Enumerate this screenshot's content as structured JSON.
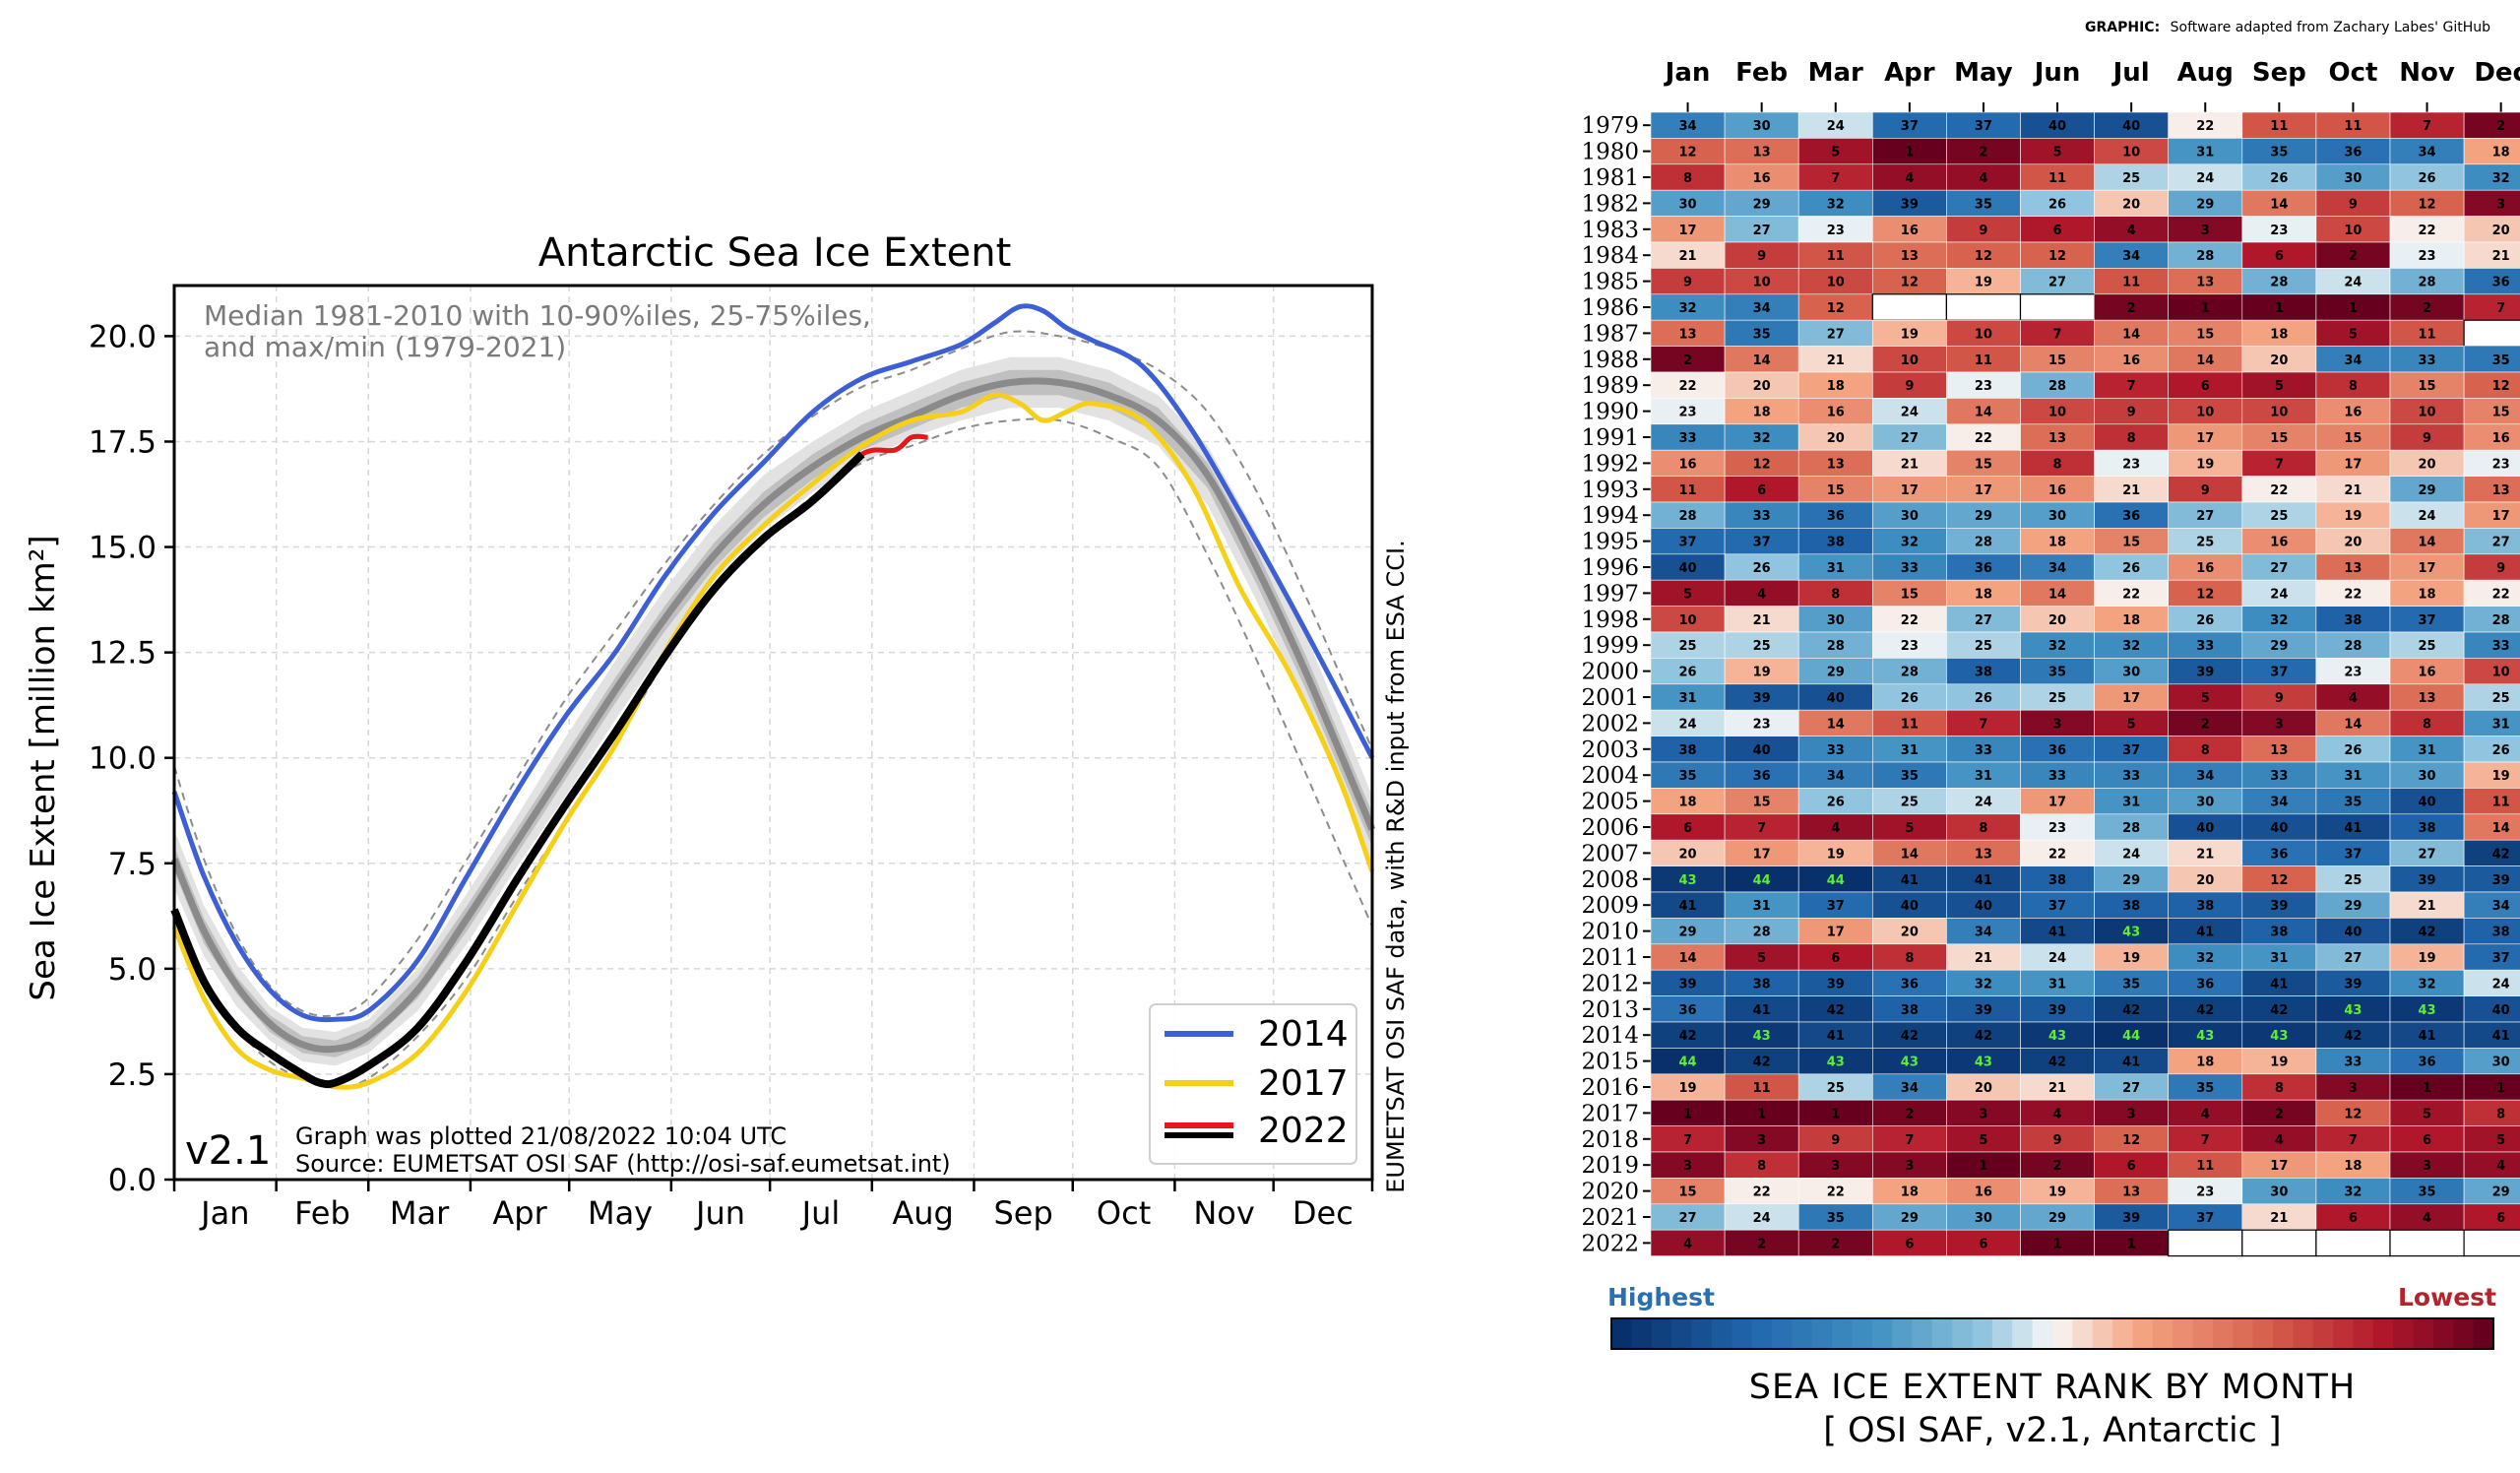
{
  "line_chart": {
    "title": "Antarctic Sea Ice Extent",
    "ylabel": "Sea Ice Extent [million km²]",
    "note_line1": "Median 1981-2010 with 10-90%iles, 25-75%iles,",
    "note_line2": "and max/min (1979-2021)",
    "version": "v2.1",
    "footer_line1": "Graph was plotted 21/08/2022 10:04 UTC",
    "footer_line2": "Source: EUMETSAT OSI SAF (http://osi-saf.eumetsat.int)",
    "side_note": "EUMETSAT OSI SAF data, with R&D input from ESA CCI.",
    "legend_position": "lower-right",
    "colors": {
      "y2014": "#3d5fd6",
      "y2017": "#f6cf18",
      "y2022_red": "#e8161b",
      "y2022_black": "#000000",
      "median": "#8a8a8a",
      "band_outer": "#e4e4e4",
      "band_inner": "#c2c2c2",
      "minmax": "#8c8c8c"
    }
  },
  "heatmap": {
    "graphic_prefix": "GRAPHIC:",
    "graphic_credit": "Software adapted from Zachary Labes' GitHub",
    "highest_label": "Highest",
    "lowest_label": "Lowest",
    "title_line1": "SEA ICE EXTENT RANK BY MONTH",
    "title_line2": "[ OSI SAF, v2.1, Antarctic ]",
    "colors": {
      "highest": "#2a6fb0",
      "lowest": "#b5242c"
    }
  },
  "chart_data": [
    {
      "type": "line",
      "title": "Antarctic Sea Ice Extent",
      "ylabel": "Sea Ice Extent [million km²]",
      "xlabel": "",
      "ylim": [
        0,
        21.2
      ],
      "yticks": [
        0.0,
        2.5,
        5.0,
        7.5,
        10.0,
        12.5,
        15.0,
        17.5,
        20.0
      ],
      "ytick_labels": [
        "0.0",
        "2.5",
        "5.0",
        "7.5",
        "10.0",
        "12.5",
        "15.0",
        "17.5",
        "20.0"
      ],
      "xticks": [
        "Jan",
        "Feb",
        "Mar",
        "Apr",
        "May",
        "Jun",
        "Jul",
        "Aug",
        "Sep",
        "Oct",
        "Nov",
        "Dec"
      ],
      "xlim_day": [
        1,
        365
      ],
      "grid": true,
      "series": [
        {
          "name": "2014",
          "color": "#3d5fd6",
          "x": [
            1,
            10,
            20,
            30,
            40,
            50,
            60,
            75,
            90,
            105,
            120,
            135,
            150,
            165,
            180,
            195,
            210,
            225,
            240,
            250,
            258,
            265,
            272,
            280,
            295,
            310,
            325,
            340,
            355,
            365
          ],
          "y": [
            9.2,
            7.2,
            5.6,
            4.5,
            3.9,
            3.8,
            4.0,
            5.2,
            7.2,
            9.2,
            11.0,
            12.5,
            14.3,
            15.8,
            17.0,
            18.2,
            19.0,
            19.4,
            19.8,
            20.3,
            20.7,
            20.6,
            20.2,
            19.9,
            19.3,
            17.8,
            15.8,
            13.7,
            11.5,
            10.0
          ]
        },
        {
          "name": "2017",
          "color": "#f6cf18",
          "x": [
            1,
            10,
            20,
            30,
            40,
            50,
            60,
            75,
            90,
            105,
            120,
            135,
            150,
            165,
            180,
            195,
            210,
            225,
            240,
            250,
            258,
            265,
            272,
            280,
            295,
            310,
            325,
            340,
            355,
            365
          ],
          "y": [
            6.0,
            4.3,
            3.1,
            2.6,
            2.4,
            2.2,
            2.3,
            3.0,
            4.5,
            6.5,
            8.5,
            10.3,
            12.5,
            14.3,
            15.5,
            16.5,
            17.4,
            18.0,
            18.2,
            18.6,
            18.4,
            18.0,
            18.2,
            18.4,
            18.0,
            16.5,
            14.0,
            12.0,
            9.5,
            7.3
          ]
        },
        {
          "name": "2022",
          "color": "#e8161b",
          "x": [
            1,
            10,
            20,
            30,
            40,
            45,
            50,
            60,
            75,
            90,
            105,
            120,
            135,
            150,
            165,
            180,
            195,
            210,
            220,
            225,
            230
          ],
          "y": [
            6.4,
            4.7,
            3.6,
            3.0,
            2.5,
            2.3,
            2.3,
            2.7,
            3.6,
            5.2,
            7.1,
            8.9,
            10.6,
            12.4,
            14.0,
            15.2,
            16.1,
            17.2,
            17.3,
            17.6,
            17.6
          ],
          "observed_through_day": 210,
          "observed_color": "#000000"
        },
        {
          "name": "median 1981-2010",
          "color": "#8a8a8a",
          "x": [
            1,
            10,
            20,
            30,
            40,
            50,
            60,
            75,
            90,
            105,
            120,
            135,
            150,
            165,
            180,
            195,
            210,
            225,
            240,
            255,
            270,
            285,
            300,
            315,
            330,
            345,
            365
          ],
          "y": [
            7.6,
            5.9,
            4.6,
            3.7,
            3.2,
            3.1,
            3.4,
            4.5,
            6.2,
            8.0,
            9.8,
            11.6,
            13.3,
            14.8,
            16.0,
            16.9,
            17.6,
            18.1,
            18.6,
            18.9,
            18.9,
            18.6,
            18.0,
            16.7,
            14.5,
            12.0,
            8.3
          ]
        }
      ],
      "bands": {
        "x": [
          1,
          10,
          20,
          30,
          40,
          50,
          60,
          75,
          90,
          105,
          120,
          135,
          150,
          165,
          180,
          195,
          210,
          225,
          240,
          255,
          270,
          285,
          300,
          315,
          330,
          345,
          365
        ],
        "p10": [
          6.9,
          5.3,
          4.1,
          3.3,
          2.8,
          2.7,
          3.0,
          4.0,
          5.6,
          7.4,
          9.1,
          10.9,
          12.6,
          14.2,
          15.4,
          16.3,
          17.0,
          17.6,
          18.0,
          18.3,
          18.3,
          18.0,
          17.4,
          16.0,
          13.7,
          11.2,
          7.5
        ],
        "p25": [
          7.3,
          5.6,
          4.4,
          3.5,
          3.0,
          2.9,
          3.2,
          4.3,
          5.9,
          7.7,
          9.5,
          11.3,
          13.0,
          14.5,
          15.7,
          16.6,
          17.3,
          17.8,
          18.3,
          18.6,
          18.6,
          18.3,
          17.7,
          16.4,
          14.1,
          11.6,
          7.9
        ],
        "p75": [
          7.9,
          6.2,
          4.8,
          3.9,
          3.4,
          3.3,
          3.6,
          4.8,
          6.5,
          8.3,
          10.1,
          11.9,
          13.6,
          15.1,
          16.3,
          17.2,
          17.9,
          18.4,
          18.9,
          19.2,
          19.2,
          18.9,
          18.3,
          17.0,
          14.9,
          12.4,
          8.7
        ],
        "p90": [
          8.3,
          6.5,
          5.1,
          4.1,
          3.6,
          3.5,
          3.8,
          5.0,
          6.8,
          8.6,
          10.5,
          12.3,
          14.0,
          15.5,
          16.7,
          17.5,
          18.2,
          18.7,
          19.2,
          19.5,
          19.5,
          19.2,
          18.6,
          17.4,
          15.3,
          12.9,
          9.1
        ],
        "min": [
          6.0,
          4.7,
          3.6,
          2.8,
          2.4,
          2.2,
          2.4,
          3.4,
          4.8,
          6.7,
          8.5,
          10.3,
          12.3,
          14.0,
          15.2,
          16.2,
          17.0,
          17.4,
          17.8,
          18.0,
          18.0,
          17.6,
          16.9,
          14.8,
          12.3,
          9.6,
          6.0
        ],
        "max": [
          9.8,
          7.6,
          5.8,
          4.6,
          4.0,
          3.9,
          4.3,
          5.7,
          7.6,
          9.5,
          11.4,
          13.0,
          14.6,
          16.0,
          17.2,
          18.1,
          18.8,
          19.2,
          19.7,
          20.1,
          20.0,
          19.7,
          19.2,
          18.2,
          16.3,
          13.8,
          10.2
        ]
      }
    },
    {
      "type": "heatmap",
      "title": "SEA ICE EXTENT RANK BY MONTH",
      "subtitle": "[ OSI SAF, v2.1, Antarctic ]",
      "columns": [
        "Jan",
        "Feb",
        "Mar",
        "Apr",
        "May",
        "Jun",
        "Jul",
        "Aug",
        "Sep",
        "Oct",
        "Nov",
        "Dec"
      ],
      "rows": [
        "1979",
        "1980",
        "1981",
        "1982",
        "1983",
        "1984",
        "1985",
        "1986",
        "1987",
        "1988",
        "1989",
        "1990",
        "1991",
        "1992",
        "1993",
        "1994",
        "1995",
        "1996",
        "1997",
        "1998",
        "1999",
        "2000",
        "2001",
        "2002",
        "2003",
        "2004",
        "2005",
        "2006",
        "2007",
        "2008",
        "2009",
        "2010",
        "2011",
        "2012",
        "2013",
        "2014",
        "2015",
        "2016",
        "2017",
        "2018",
        "2019",
        "2020",
        "2021",
        "2022"
      ],
      "values": [
        [
          34,
          30,
          24,
          37,
          37,
          40,
          40,
          22,
          11,
          11,
          7,
          2
        ],
        [
          12,
          13,
          5,
          1,
          2,
          5,
          10,
          31,
          35,
          36,
          34,
          18
        ],
        [
          8,
          16,
          7,
          4,
          4,
          11,
          25,
          24,
          26,
          30,
          26,
          32
        ],
        [
          30,
          29,
          32,
          39,
          35,
          26,
          20,
          29,
          14,
          9,
          12,
          3
        ],
        [
          17,
          27,
          23,
          16,
          9,
          6,
          4,
          3,
          23,
          10,
          22,
          20
        ],
        [
          21,
          9,
          11,
          13,
          12,
          12,
          34,
          28,
          6,
          2,
          23,
          21
        ],
        [
          9,
          10,
          10,
          12,
          19,
          27,
          11,
          13,
          28,
          24,
          28,
          36
        ],
        [
          32,
          34,
          12,
          null,
          null,
          null,
          2,
          1,
          1,
          1,
          2,
          7
        ],
        [
          13,
          35,
          27,
          19,
          10,
          7,
          14,
          15,
          18,
          5,
          11,
          null
        ],
        [
          2,
          14,
          21,
          10,
          11,
          15,
          16,
          14,
          20,
          34,
          33,
          35
        ],
        [
          22,
          20,
          18,
          9,
          23,
          28,
          7,
          6,
          5,
          8,
          15,
          12
        ],
        [
          23,
          18,
          16,
          24,
          14,
          10,
          9,
          10,
          10,
          16,
          10,
          15
        ],
        [
          33,
          32,
          20,
          27,
          22,
          13,
          8,
          17,
          15,
          15,
          9,
          16
        ],
        [
          16,
          12,
          13,
          21,
          15,
          8,
          23,
          19,
          7,
          17,
          20,
          23
        ],
        [
          11,
          6,
          15,
          17,
          17,
          16,
          21,
          9,
          22,
          21,
          29,
          13
        ],
        [
          28,
          33,
          36,
          30,
          29,
          30,
          36,
          27,
          25,
          19,
          24,
          17
        ],
        [
          37,
          37,
          38,
          32,
          28,
          18,
          15,
          25,
          16,
          20,
          14,
          27
        ],
        [
          40,
          26,
          31,
          33,
          36,
          34,
          26,
          16,
          27,
          13,
          17,
          9
        ],
        [
          5,
          4,
          8,
          15,
          18,
          14,
          22,
          12,
          24,
          22,
          18,
          22
        ],
        [
          10,
          21,
          30,
          22,
          27,
          20,
          18,
          26,
          32,
          38,
          37,
          28
        ],
        [
          25,
          25,
          28,
          23,
          25,
          32,
          32,
          33,
          29,
          28,
          25,
          33
        ],
        [
          26,
          19,
          29,
          28,
          38,
          35,
          30,
          39,
          37,
          23,
          16,
          10
        ],
        [
          31,
          39,
          40,
          26,
          26,
          25,
          17,
          5,
          9,
          4,
          13,
          25
        ],
        [
          24,
          23,
          14,
          11,
          7,
          3,
          5,
          2,
          3,
          14,
          8,
          31
        ],
        [
          38,
          40,
          33,
          31,
          33,
          36,
          37,
          8,
          13,
          26,
          31,
          26
        ],
        [
          35,
          36,
          34,
          35,
          31,
          33,
          33,
          34,
          33,
          31,
          30,
          19
        ],
        [
          18,
          15,
          26,
          25,
          24,
          17,
          31,
          30,
          34,
          35,
          40,
          11
        ],
        [
          6,
          7,
          4,
          5,
          8,
          23,
          28,
          40,
          40,
          41,
          38,
          14
        ],
        [
          20,
          17,
          19,
          14,
          13,
          22,
          24,
          21,
          36,
          37,
          27,
          42
        ],
        [
          43,
          44,
          44,
          41,
          41,
          38,
          29,
          20,
          12,
          25,
          39,
          39
        ],
        [
          41,
          31,
          37,
          40,
          40,
          37,
          38,
          38,
          39,
          29,
          21,
          34
        ],
        [
          29,
          28,
          17,
          20,
          34,
          41,
          43,
          41,
          38,
          40,
          42,
          38
        ],
        [
          14,
          5,
          6,
          8,
          21,
          24,
          19,
          32,
          31,
          27,
          19,
          37
        ],
        [
          39,
          38,
          39,
          36,
          32,
          31,
          35,
          36,
          41,
          39,
          32,
          24
        ],
        [
          36,
          41,
          42,
          38,
          39,
          39,
          42,
          42,
          42,
          43,
          43,
          40
        ],
        [
          42,
          43,
          41,
          42,
          42,
          43,
          44,
          43,
          43,
          42,
          41,
          41
        ],
        [
          44,
          42,
          43,
          43,
          43,
          42,
          41,
          18,
          19,
          33,
          36,
          30
        ],
        [
          19,
          11,
          25,
          34,
          20,
          21,
          27,
          35,
          8,
          3,
          1,
          1
        ],
        [
          1,
          1,
          1,
          2,
          3,
          4,
          3,
          4,
          2,
          12,
          5,
          8
        ],
        [
          7,
          3,
          9,
          7,
          5,
          9,
          12,
          7,
          4,
          7,
          6,
          5
        ],
        [
          3,
          8,
          3,
          3,
          1,
          2,
          6,
          11,
          17,
          18,
          3,
          4
        ],
        [
          15,
          22,
          22,
          18,
          16,
          19,
          13,
          23,
          30,
          32,
          35,
          29
        ],
        [
          27,
          24,
          35,
          29,
          30,
          29,
          39,
          37,
          21,
          6,
          4,
          6
        ],
        [
          4,
          2,
          2,
          6,
          6,
          1,
          1,
          null,
          null,
          null,
          null,
          null
        ]
      ],
      "colorbar": {
        "left_label": "Highest",
        "right_label": "Lowest",
        "min_rank": 1,
        "max_rank": 44
      }
    }
  ]
}
